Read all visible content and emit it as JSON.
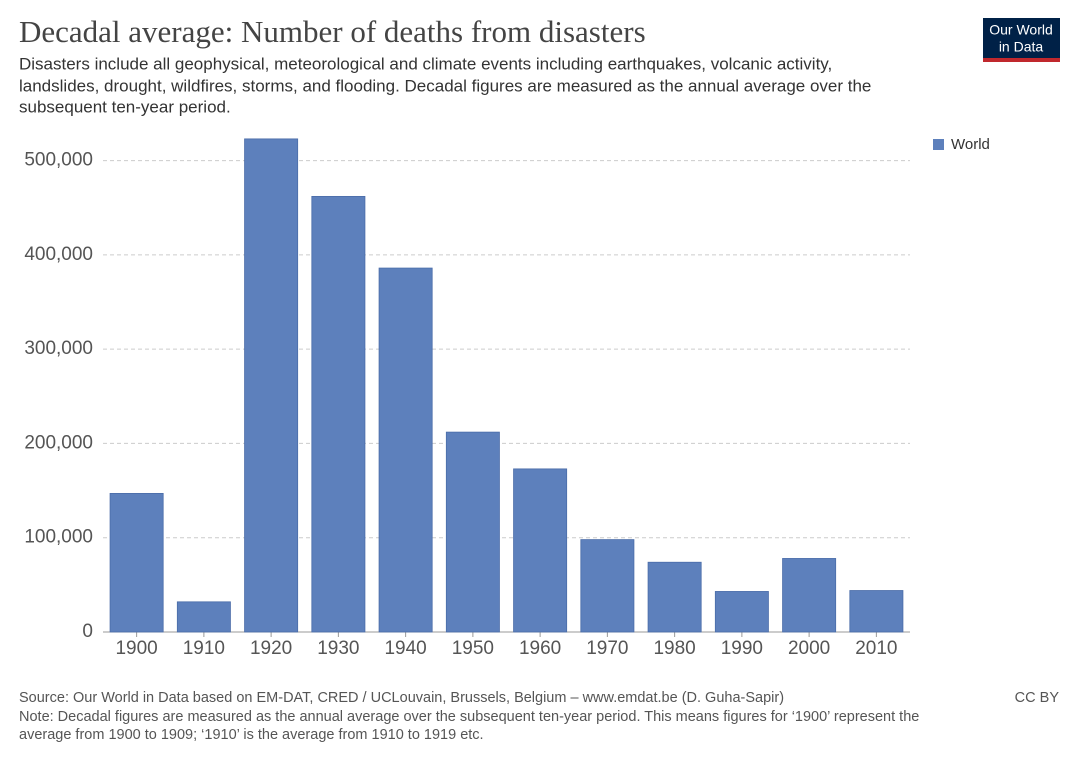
{
  "chart_data": {
    "type": "bar",
    "title": "Decadal average: Number of deaths from disasters",
    "subtitle": [
      "Disasters include all geophysical, meteorological and climate events including earthquakes, volcanic activity,",
      "landslides, drought, wildfires, storms, and flooding. Decadal figures are measured as the annual average over the",
      "subsequent ten-year period."
    ],
    "categories": [
      "1900",
      "1910",
      "1920",
      "1930",
      "1940",
      "1950",
      "1960",
      "1970",
      "1980",
      "1990",
      "2000",
      "2010"
    ],
    "series": [
      {
        "name": "World",
        "color": "#5d80bc",
        "values": [
          147000,
          32000,
          523000,
          462000,
          386000,
          212000,
          173000,
          98000,
          74000,
          43000,
          78000,
          44000
        ]
      }
    ],
    "ylim": [
      0,
      525000
    ],
    "yticks": [
      0,
      {
        "value": 100000,
        "label": "100,000"
      },
      {
        "value": 200000,
        "label": "200,000"
      },
      {
        "value": 300000,
        "label": "300,000"
      },
      {
        "value": 400000,
        "label": "400,000"
      },
      {
        "value": 500000,
        "label": "500,000"
      }
    ],
    "grid": true,
    "source": "Source: Our World in Data based on EM-DAT, CRED / UCLouvain, Brussels, Belgium – www.emdat.be (D. Guha-Sapir)",
    "license": "CC BY",
    "note": [
      "Note: Decadal figures are measured as the annual average over the subsequent ten-year period. This means figures for ‘1900’ represent the",
      "average from 1900 to 1909; ‘1910’ is the average from 1910 to 1919 etc."
    ]
  },
  "logo": [
    "Our World",
    "in Data"
  ]
}
